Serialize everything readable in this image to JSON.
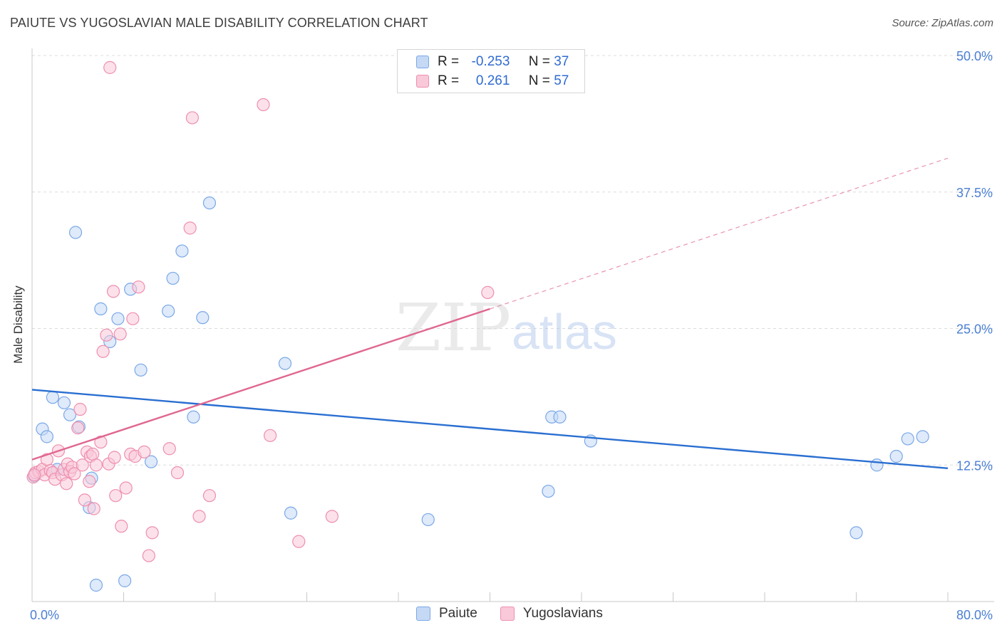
{
  "chart_data": {
    "type": "scatter",
    "title": "PAIUTE VS YUGOSLAVIAN MALE DISABILITY CORRELATION CHART",
    "source": "Source: ZipAtlas.com",
    "xlabel": "",
    "ylabel": "Male Disability",
    "xlim": [
      0,
      80
    ],
    "ylim": [
      0,
      50
    ],
    "x_tick_labels": [
      "0.0%",
      "80.0%"
    ],
    "y_ticks": [
      12.5,
      25.0,
      37.5,
      50.0
    ],
    "y_tick_labels": [
      "12.5%",
      "25.0%",
      "37.5%",
      "50.0%"
    ],
    "grid": true,
    "watermark": "ZIPatlas",
    "legend": {
      "r_label": "R =",
      "n_label": "N =",
      "entries": [
        {
          "name": "Paiute",
          "r": "-0.253",
          "n": "37",
          "color": "#7aa8e8",
          "fill": "#c5d9f5"
        },
        {
          "name": "Yugoslavians",
          "r": "0.261",
          "n": "57",
          "color": "#ee8fae",
          "fill": "#f9c9d9"
        }
      ]
    },
    "series": [
      {
        "name": "Paiute",
        "color": "#7aa8e8",
        "trend_color": "#2a6fd1",
        "trend": {
          "x": [
            0,
            80
          ],
          "y": [
            19.4,
            12.2
          ]
        },
        "points": [
          [
            0.2,
            11.5
          ],
          [
            0.9,
            15.8
          ],
          [
            1.3,
            15.1
          ],
          [
            1.8,
            18.7
          ],
          [
            2.2,
            12.1
          ],
          [
            2.8,
            18.2
          ],
          [
            3.3,
            17.1
          ],
          [
            3.8,
            33.8
          ],
          [
            4.1,
            16.0
          ],
          [
            5.0,
            8.6
          ],
          [
            5.2,
            11.3
          ],
          [
            5.6,
            1.5
          ],
          [
            6.0,
            26.8
          ],
          [
            6.8,
            23.8
          ],
          [
            7.5,
            25.9
          ],
          [
            8.1,
            1.9
          ],
          [
            8.6,
            28.6
          ],
          [
            9.5,
            21.2
          ],
          [
            10.4,
            12.8
          ],
          [
            11.9,
            26.6
          ],
          [
            12.3,
            29.6
          ],
          [
            13.1,
            32.1
          ],
          [
            14.1,
            16.9
          ],
          [
            14.9,
            26.0
          ],
          [
            15.5,
            36.5
          ],
          [
            22.1,
            21.8
          ],
          [
            22.6,
            8.1
          ],
          [
            34.6,
            7.5
          ],
          [
            45.1,
            10.1
          ],
          [
            45.4,
            16.9
          ],
          [
            46.1,
            16.9
          ],
          [
            48.8,
            14.7
          ],
          [
            72.0,
            6.3
          ],
          [
            73.8,
            12.5
          ],
          [
            75.5,
            13.3
          ],
          [
            76.5,
            14.9
          ],
          [
            77.8,
            15.1
          ]
        ]
      },
      {
        "name": "Yugoslavians",
        "color": "#ee8fae",
        "trend_color": "#e0678f",
        "trend": {
          "x": [
            0,
            40
          ],
          "y": [
            13.0,
            26.8
          ]
        },
        "trend_dashed": {
          "x": [
            40,
            80
          ],
          "y": [
            26.8,
            40.6
          ]
        },
        "points": [
          [
            0.1,
            11.4
          ],
          [
            0.3,
            11.8
          ],
          [
            0.6,
            11.9
          ],
          [
            0.9,
            12.1
          ],
          [
            1.1,
            11.6
          ],
          [
            1.3,
            13.0
          ],
          [
            1.6,
            12.0
          ],
          [
            1.8,
            11.8
          ],
          [
            2.0,
            11.2
          ],
          [
            2.3,
            13.8
          ],
          [
            2.6,
            11.6
          ],
          [
            2.8,
            12.1
          ],
          [
            3.0,
            10.8
          ],
          [
            3.1,
            12.6
          ],
          [
            3.3,
            11.9
          ],
          [
            3.5,
            12.3
          ],
          [
            3.7,
            11.7
          ],
          [
            4.0,
            15.9
          ],
          [
            4.2,
            17.6
          ],
          [
            4.4,
            12.5
          ],
          [
            4.6,
            9.3
          ],
          [
            4.8,
            13.7
          ],
          [
            5.0,
            11.0
          ],
          [
            5.1,
            13.3
          ],
          [
            5.3,
            13.5
          ],
          [
            5.4,
            8.5
          ],
          [
            5.6,
            12.5
          ],
          [
            6.0,
            14.6
          ],
          [
            6.2,
            22.9
          ],
          [
            6.5,
            24.4
          ],
          [
            6.7,
            12.6
          ],
          [
            6.8,
            48.9
          ],
          [
            7.1,
            28.4
          ],
          [
            7.2,
            13.2
          ],
          [
            7.3,
            9.7
          ],
          [
            7.7,
            24.5
          ],
          [
            7.8,
            6.9
          ],
          [
            8.2,
            10.4
          ],
          [
            8.6,
            13.5
          ],
          [
            8.8,
            25.9
          ],
          [
            9.0,
            13.3
          ],
          [
            9.3,
            28.8
          ],
          [
            9.8,
            13.7
          ],
          [
            10.2,
            4.2
          ],
          [
            10.5,
            6.3
          ],
          [
            12.0,
            14.0
          ],
          [
            12.7,
            11.8
          ],
          [
            13.8,
            34.2
          ],
          [
            14.0,
            44.3
          ],
          [
            14.6,
            7.8
          ],
          [
            15.5,
            9.7
          ],
          [
            20.2,
            45.5
          ],
          [
            20.8,
            15.2
          ],
          [
            23.3,
            5.5
          ],
          [
            26.2,
            7.8
          ],
          [
            39.8,
            28.3
          ],
          [
            0.2,
            11.6
          ]
        ]
      }
    ]
  }
}
